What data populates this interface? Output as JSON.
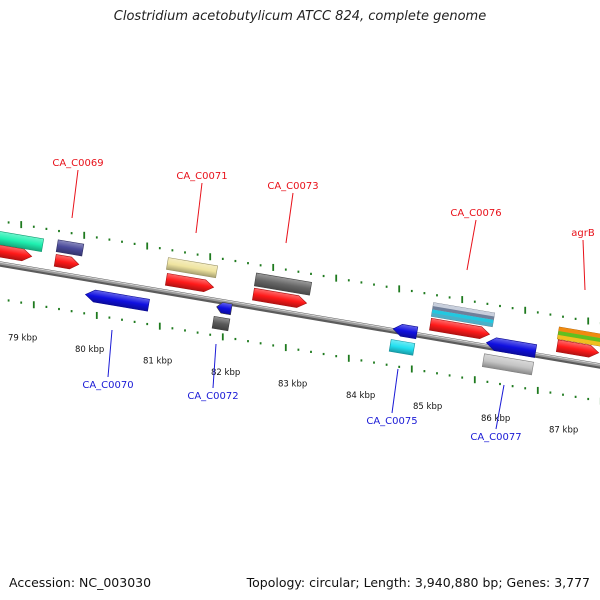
{
  "title": "Clostridium acetobutylicum ATCC 824, complete genome",
  "footer": {
    "accession": "Accession: NC_003030",
    "topology": "Topology: circular; Length: 3,940,880 bp; Genes: 3,777"
  },
  "colors": {
    "forward_label": "#e8111a",
    "reverse_label": "#1a1ad6",
    "cds": "#ff1a1a",
    "tick": "#1e7a1e",
    "backbone": "#8a8a8a"
  },
  "scale_labels": [
    "79 kbp",
    "80 kbp",
    "81 kbp",
    "82 kbp",
    "83 kbp",
    "84 kbp",
    "85 kbp",
    "86 kbp",
    "87 kbp"
  ],
  "forward_labels": [
    "CA_C0069",
    "CA_C0071",
    "CA_C0073",
    "CA_C0076",
    "agrB"
  ],
  "reverse_labels": [
    "CA_C0070",
    "CA_C0072",
    "CA_C0075",
    "CA_C0077"
  ],
  "feature_colors": {
    "CA_C0069": "#4a4a9a",
    "CA_C0071": "#efe4a0",
    "CA_C0073": "#676767",
    "CA_C0076": "#aab4c8",
    "CA_C0070": "#1010e0",
    "CA_C0072": "#5a5a5a",
    "CA_C0075": "#22e0f0",
    "CA_C0077": "#c4c4c4",
    "agrB": "#f08a10",
    "upstream": "#1ef0b0"
  }
}
